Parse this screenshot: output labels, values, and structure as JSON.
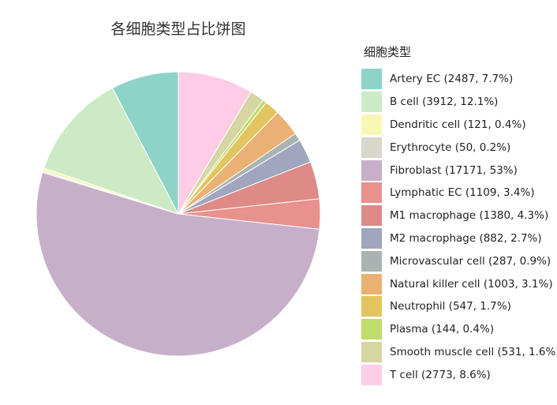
{
  "chart_data": {
    "type": "pie",
    "title": "各细胞类型占比饼图",
    "legend_title": "细胞类型",
    "legend_position": "right",
    "slices": [
      {
        "name": "Artery EC",
        "count": 2487,
        "percent": "7.7%",
        "label": "Artery EC (2487, 7.7%)",
        "color": "#8DD3C7"
      },
      {
        "name": "B cell",
        "count": 3912,
        "percent": "12.1%",
        "label": "B cell (3912, 12.1%)",
        "color": "#CCEBC5"
      },
      {
        "name": "Dendritic cell",
        "count": 121,
        "percent": "0.4%",
        "label": "Dendritic cell (121, 0.4%)",
        "color": "#F9F7B5"
      },
      {
        "name": "Erythrocyte",
        "count": 50,
        "percent": "0.2%",
        "label": "Erythrocyte (50, 0.2%)",
        "color": "#D9D7C9"
      },
      {
        "name": "Fibroblast",
        "count": 17171,
        "percent": "53%",
        "label": "Fibroblast (17171, 53%)",
        "color": "#C7AFC9"
      },
      {
        "name": "Lymphatic EC",
        "count": 1109,
        "percent": "3.4%",
        "label": "Lymphatic EC (1109, 3.4%)",
        "color": "#E8918D"
      },
      {
        "name": "M1 macrophage",
        "count": 1380,
        "percent": "4.3%",
        "label": "M1 macrophage (1380, 4.3%)",
        "color": "#DE8A86"
      },
      {
        "name": "M2 macrophage",
        "count": 882,
        "percent": "2.7%",
        "label": "M2 macrophage (882, 2.7%)",
        "color": "#A0A6BF"
      },
      {
        "name": "Microvascular cell",
        "count": 287,
        "percent": "0.9%",
        "label": "Microvascular cell (287, 0.9%)",
        "color": "#A9B3B2"
      },
      {
        "name": "Natural killer cell",
        "count": 1003,
        "percent": "3.1%",
        "label": "Natural killer cell (1003, 3.1%)",
        "color": "#EAB173"
      },
      {
        "name": "Neutrophil",
        "count": 547,
        "percent": "1.7%",
        "label": "Neutrophil (547, 1.7%)",
        "color": "#E2C55E"
      },
      {
        "name": "Plasma",
        "count": 144,
        "percent": "0.4%",
        "label": "Plasma (144, 0.4%)",
        "color": "#BEDD6B"
      },
      {
        "name": "Smooth muscle cell",
        "count": 531,
        "percent": "1.6%",
        "label": "Smooth muscle cell (531, 1.6%)",
        "color": "#D5D6A2"
      },
      {
        "name": "T cell",
        "count": 2773,
        "percent": "8.6%",
        "label": "T cell (2773, 8.6%)",
        "color": "#FCCDE5"
      }
    ],
    "draw_order": [
      "T cell",
      "Smooth muscle cell",
      "Plasma",
      "Neutrophil",
      "Natural killer cell",
      "Microvascular cell",
      "M2 macrophage",
      "M1 macrophage",
      "Lymphatic EC",
      "Fibroblast",
      "Erythrocyte",
      "Dendritic cell",
      "B cell",
      "Artery EC"
    ],
    "start": "12 o'clock",
    "direction": "clockwise"
  }
}
